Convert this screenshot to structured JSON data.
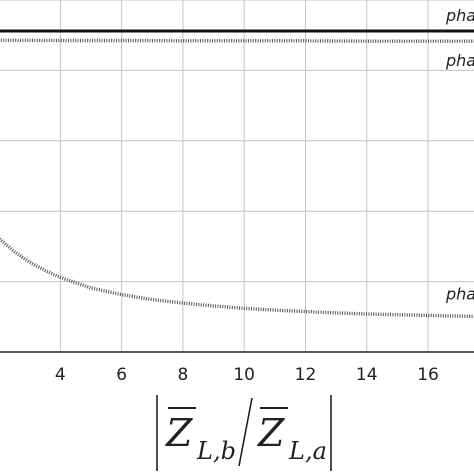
{
  "chart_data": {
    "type": "line",
    "xlabel": {
      "bar": "Z",
      "sub_b": "L,b",
      "sub_a": "L,a"
    },
    "xlim": [
      1.9,
      17.5
    ],
    "ylim": [
      0,
      1
    ],
    "x_ticks": [
      4,
      6,
      8,
      10,
      12,
      14,
      16
    ],
    "x_tick_labels": [
      "4",
      "6",
      "8",
      "10",
      "12",
      "14",
      "16"
    ],
    "grid": true,
    "series": [
      {
        "name": "pha",
        "color": "#111111",
        "style": "solid",
        "x": [
          1.9,
          17.5
        ],
        "y": [
          0.912,
          0.912
        ]
      },
      {
        "name": "pha",
        "color": "#555555",
        "style": "dotted",
        "x": [
          1.9,
          4,
          6,
          8,
          10,
          12,
          14,
          16,
          17.5
        ],
        "y": [
          0.886,
          0.885,
          0.885,
          0.884,
          0.884,
          0.884,
          0.883,
          0.883,
          0.883
        ]
      },
      {
        "name": "pha",
        "color": "#555555",
        "style": "dotted",
        "x": [
          1.9,
          2.5,
          3,
          3.5,
          4,
          5,
          6,
          7,
          8,
          9,
          10,
          11,
          12,
          13,
          14,
          15,
          16,
          17.5
        ],
        "y": [
          0.33,
          0.285,
          0.255,
          0.232,
          0.212,
          0.182,
          0.163,
          0.149,
          0.139,
          0.131,
          0.124,
          0.119,
          0.115,
          0.111,
          0.108,
          0.106,
          0.104,
          0.101
        ]
      }
    ]
  }
}
